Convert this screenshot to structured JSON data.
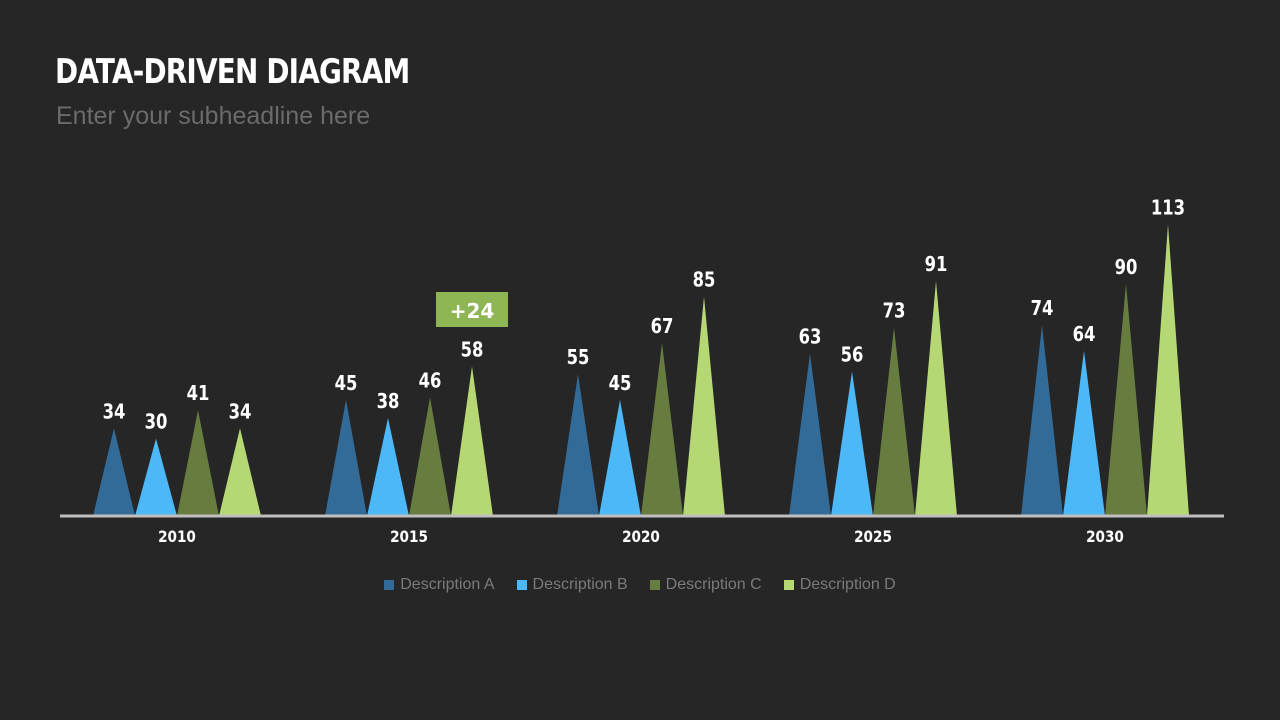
{
  "slide": {
    "title": "DATA-DRIVEN DIAGRAM",
    "subtitle": "Enter your subheadline here"
  },
  "chart_data": {
    "type": "bar",
    "shape": "triangle",
    "categories": [
      "2010",
      "2015",
      "2020",
      "2025",
      "2030"
    ],
    "series": [
      {
        "name": "Description A",
        "color": "#336b98",
        "values": [
          34,
          45,
          55,
          63,
          74
        ]
      },
      {
        "name": "Description B",
        "color": "#4db8f7",
        "values": [
          30,
          38,
          45,
          56,
          64
        ]
      },
      {
        "name": "Description C",
        "color": "#677d3f",
        "values": [
          41,
          46,
          67,
          73,
          90
        ]
      },
      {
        "name": "Description D",
        "color": "#b6d874",
        "values": [
          34,
          58,
          85,
          91,
          113
        ]
      }
    ],
    "highlight": {
      "text": "+24",
      "color": "#8fb655"
    },
    "axis_color": "#bfbfbf",
    "ylim": [
      0,
      113
    ],
    "grid": false,
    "legend_position": "bottom"
  }
}
